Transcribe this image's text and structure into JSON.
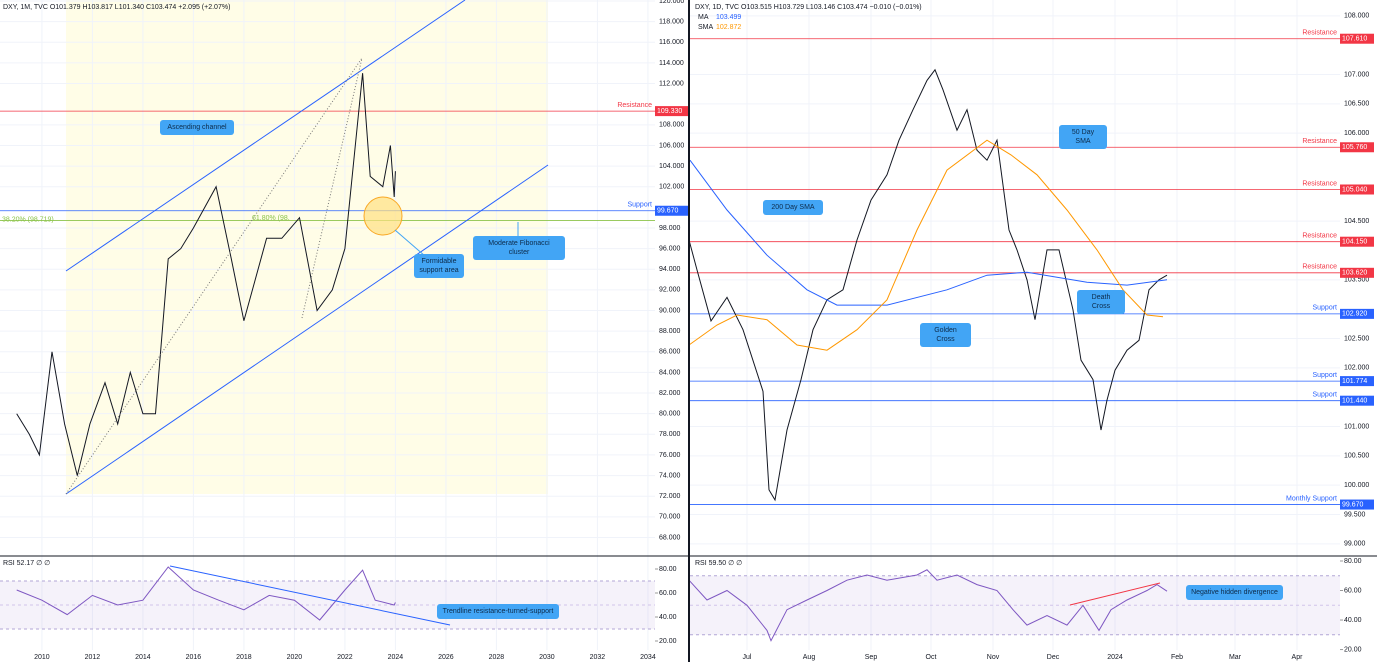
{
  "chart_data": [
    {
      "type": "line",
      "header": "DXY, 1M, TVC  O101.379  H103.817  L101.340  C103.474  +2.095 (+2.07%)",
      "xlim": [
        2008.34,
        2034.28
      ],
      "xticks": [
        2010,
        2012,
        2014,
        2016,
        2018,
        2020,
        2022,
        2024,
        2026,
        2028,
        2030,
        2032,
        2034
      ],
      "ylim": [
        66.3,
        120.1
      ],
      "yticks": [
        {
          "value": 68,
          "label": "68.000"
        },
        {
          "value": 70,
          "label": "70.000"
        },
        {
          "value": 72,
          "label": "72.000"
        },
        {
          "value": 74,
          "label": "74.000"
        },
        {
          "value": 76,
          "label": "76.000"
        },
        {
          "value": 78,
          "label": "78.000"
        },
        {
          "value": 80,
          "label": "80.000"
        },
        {
          "value": 82,
          "label": "82.000"
        },
        {
          "value": 84,
          "label": "84.000"
        },
        {
          "value": 86,
          "label": "86.000"
        },
        {
          "value": 88,
          "label": "88.000"
        },
        {
          "value": 90,
          "label": "90.000"
        },
        {
          "value": 92,
          "label": "92.000"
        },
        {
          "value": 94,
          "label": "94.000"
        },
        {
          "value": 96,
          "label": "96.000"
        },
        {
          "value": 98,
          "label": "98.000"
        },
        {
          "value": 102,
          "label": "102.000"
        },
        {
          "value": 104,
          "label": "104.000"
        },
        {
          "value": 106,
          "label": "106.000"
        },
        {
          "value": 108,
          "label": "108.000"
        },
        {
          "value": 112,
          "label": "112.000"
        },
        {
          "value": 114,
          "label": "114.000"
        },
        {
          "value": 116,
          "label": "116.000"
        },
        {
          "value": 118,
          "label": "118.000"
        },
        {
          "value": 120,
          "label": "120.000"
        }
      ],
      "grid": true,
      "series": [
        {
          "color": "#131722",
          "x": [
            2009.0,
            2009.5,
            2009.9,
            2010.4,
            2010.9,
            2011.4,
            2011.9,
            2012.5,
            2013.0,
            2013.5,
            2014.0,
            2014.5,
            2015.0,
            2015.5,
            2016.0,
            2016.9,
            2017.5,
            2018.0,
            2018.9,
            2019.5,
            2020.2,
            2020.9,
            2021.5,
            2022.0,
            2022.7,
            2023.0,
            2023.5,
            2023.8,
            2023.95,
            2024.0
          ],
          "values": [
            80,
            78,
            76,
            86,
            79,
            74,
            79,
            83,
            79,
            84,
            80,
            80,
            95,
            96,
            98,
            102,
            95,
            89,
            97,
            97,
            99,
            90,
            92,
            96,
            113,
            103,
            102,
            106,
            101,
            103.5
          ]
        }
      ],
      "levels": [
        {
          "label": "Resistance",
          "value": 109.33,
          "value_label": "109.330",
          "color": "#f23645"
        },
        {
          "label": "Support",
          "value": 99.67,
          "value_label": "99.670",
          "color": "#2962ff"
        },
        {
          "label": "38.20% (98.719)",
          "value": 98.719,
          "color": "#8bc34a",
          "label_side": "left"
        }
      ],
      "fib_note": "61.80% (98.",
      "annotations": [
        "Ascending channel",
        "Formidable support area",
        "Moderate Fibonacci cluster",
        "Trendline resistance-turned-support"
      ],
      "rsi": {
        "header": "RSI  52.17  ∅  ∅",
        "color": "#7e57c2",
        "ylim": [
          12.5,
          90
        ],
        "band": [
          30,
          70
        ],
        "mid": 50,
        "yticks": [
          {
            "value": 20,
            "label": "20.00"
          },
          {
            "value": 40,
            "label": "40.00"
          },
          {
            "value": 60,
            "label": "60.00"
          },
          {
            "value": 80,
            "label": "80.00"
          }
        ],
        "x": [
          2009,
          2010,
          2011,
          2012,
          2013,
          2014,
          2015,
          2016,
          2017,
          2018,
          2019,
          2020,
          2021,
          2022,
          2022.7,
          2023.2,
          2023.95,
          2024
        ],
        "values": [
          62.5,
          54,
          42,
          58,
          50,
          54,
          81.7,
          62.5,
          54,
          46,
          58,
          54,
          37.5,
          62.5,
          79,
          54,
          50,
          52.2
        ]
      }
    },
    {
      "type": "line",
      "header": "DXY, 1D, TVC  O103.515  H103.729  L103.146  C103.474  −0.010 (−0.01%)",
      "xlim": [
        1.5,
        326.5
      ],
      "xticks": [
        {
          "value": 30,
          "label": "Jul"
        },
        {
          "value": 61,
          "label": "Aug"
        },
        {
          "value": 92,
          "label": "Sep"
        },
        {
          "value": 122,
          "label": "Oct"
        },
        {
          "value": 153,
          "label": "Nov"
        },
        {
          "value": 183,
          "label": "Dec"
        },
        {
          "value": 214,
          "label": "2024"
        },
        {
          "value": 245,
          "label": "Feb"
        },
        {
          "value": 274,
          "label": "Mar"
        },
        {
          "value": 305,
          "label": "Apr"
        }
      ],
      "ylim": [
        98.81,
        108.27
      ],
      "yticks": [
        {
          "value": 99,
          "label": "99.000"
        },
        {
          "value": 99.5,
          "label": "99.500"
        },
        {
          "value": 100,
          "label": "100.000"
        },
        {
          "value": 100.5,
          "label": "100.500"
        },
        {
          "value": 101,
          "label": "101.000"
        },
        {
          "value": 102,
          "label": "102.000"
        },
        {
          "value": 102.5,
          "label": "102.500"
        },
        {
          "value": 103.5,
          "label": "103.500"
        },
        {
          "value": 104.5,
          "label": "104.500"
        },
        {
          "value": 106,
          "label": "106.000"
        },
        {
          "value": 106.5,
          "label": "106.500"
        },
        {
          "value": 107,
          "label": "107.000"
        },
        {
          "value": 108,
          "label": "108.000"
        }
      ],
      "grid": true,
      "series": [
        {
          "color": "#131722",
          "x": [
            1,
            5,
            12,
            20,
            28,
            38,
            41,
            44,
            50,
            57,
            63,
            70,
            78,
            85,
            92,
            100,
            106,
            113,
            120,
            124,
            128,
            135,
            140,
            145,
            150,
            155,
            161,
            165,
            170,
            174,
            180,
            186,
            193,
            197,
            203,
            207,
            210,
            214,
            220,
            226,
            231,
            236,
            240
          ],
          "values": [
            104.18,
            103.67,
            102.8,
            103.2,
            102.65,
            101.6,
            99.92,
            99.75,
            100.94,
            101.8,
            102.65,
            103.16,
            103.33,
            104.18,
            104.86,
            105.29,
            105.88,
            106.4,
            106.9,
            107.08,
            106.74,
            106.05,
            106.4,
            105.71,
            105.54,
            105.88,
            104.35,
            104.01,
            103.5,
            102.82,
            104.01,
            104.01,
            102.99,
            102.13,
            101.8,
            100.94,
            101.45,
            101.96,
            102.3,
            102.47,
            103.33,
            103.5,
            103.58
          ]
        },
        {
          "name": "MA",
          "last": "103.499",
          "color": "#2962ff",
          "x": [
            1.5,
            20,
            40,
            60,
            75,
            100,
            130,
            150,
            170,
            200,
            220,
            240
          ],
          "values": [
            105.54,
            104.69,
            103.92,
            103.33,
            103.07,
            103.07,
            103.33,
            103.58,
            103.63,
            103.46,
            103.41,
            103.5
          ]
        },
        {
          "name": "SMA",
          "last": "102.872",
          "color": "#ff9800",
          "x": [
            1,
            15,
            25,
            40,
            55,
            70,
            85,
            100,
            115,
            130,
            150,
            162,
            175,
            190,
            205,
            218,
            230,
            238
          ],
          "values": [
            102.39,
            102.73,
            102.9,
            102.82,
            102.39,
            102.3,
            102.65,
            103.16,
            104.35,
            105.37,
            105.88,
            105.63,
            105.29,
            104.69,
            104.01,
            103.33,
            102.9,
            102.87
          ]
        }
      ],
      "levels": [
        {
          "label": "Resistance",
          "value": 107.61,
          "value_label": "107.610",
          "color": "#f23645"
        },
        {
          "label": "Resistance",
          "value": 105.76,
          "value_label": "105.760",
          "color": "#f23645"
        },
        {
          "label": "Resistance",
          "value": 105.04,
          "value_label": "105.040",
          "color": "#f23645"
        },
        {
          "label": "Resistance",
          "value": 104.15,
          "value_label": "104.150",
          "color": "#f23645"
        },
        {
          "label": "Resistance",
          "value": 103.62,
          "value_label": "103.620",
          "color": "#f23645"
        },
        {
          "label": "Support",
          "value": 102.92,
          "value_label": "102.920",
          "color": "#2962ff"
        },
        {
          "label": "Support",
          "value": 101.774,
          "value_label": "101.774",
          "color": "#2962ff"
        },
        {
          "label": "Support",
          "value": 101.44,
          "value_label": "101.440",
          "color": "#2962ff"
        },
        {
          "label": "Monthly Support",
          "value": 99.67,
          "value_label": "99.670",
          "color": "#2962ff"
        }
      ],
      "annotations": [
        "200 Day SMA",
        "50 Day SMA",
        "Golden Cross",
        "Death Cross",
        "Negative hidden divergence"
      ],
      "rsi": {
        "header": "RSI  59.50  ∅  ∅",
        "color": "#7e57c2",
        "ylim": [
          19.7,
          82.7
        ],
        "band": [
          30,
          70
        ],
        "mid": 50,
        "yticks": [
          {
            "value": 20,
            "label": "20.00"
          },
          {
            "value": 40,
            "label": "40.00"
          },
          {
            "value": 60,
            "label": "60.00"
          },
          {
            "value": 80,
            "label": "80.00"
          }
        ],
        "x": [
          1,
          10,
          20,
          30,
          40,
          42,
          50,
          60,
          70,
          80,
          90,
          100,
          115,
          120,
          125,
          135,
          145,
          155,
          163,
          170,
          180,
          190,
          198,
          206,
          212,
          220,
          230,
          235,
          240
        ],
        "values": [
          67,
          53.6,
          60,
          50,
          33,
          26,
          47,
          53.6,
          60,
          67,
          70.5,
          67,
          70.5,
          74,
          67,
          70.5,
          64,
          60,
          47,
          36.6,
          43,
          36.6,
          50,
          33,
          47,
          53.6,
          60,
          64,
          59.5
        ]
      }
    }
  ]
}
